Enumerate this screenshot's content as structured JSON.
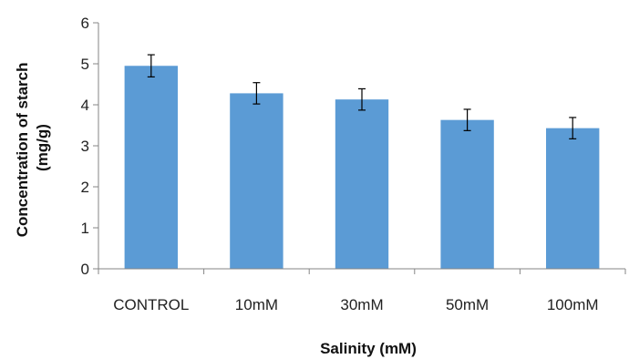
{
  "chart_data": {
    "type": "bar",
    "categories": [
      "CONTROL",
      "10mM",
      "30mM",
      "50mM",
      "100mM"
    ],
    "values": [
      4.95,
      4.28,
      4.13,
      3.63,
      3.43
    ],
    "error": [
      0.27,
      0.26,
      0.26,
      0.26,
      0.26
    ],
    "xlabel": "Salinity (mM)",
    "ylabel_lines": [
      "Concentration of starch",
      "(mg/g)"
    ],
    "ylim": [
      0,
      6
    ],
    "yticks": [
      0,
      1,
      2,
      3,
      4,
      5,
      6
    ],
    "bar_color": "#5b9bd5",
    "grid": false,
    "legend": "none"
  }
}
